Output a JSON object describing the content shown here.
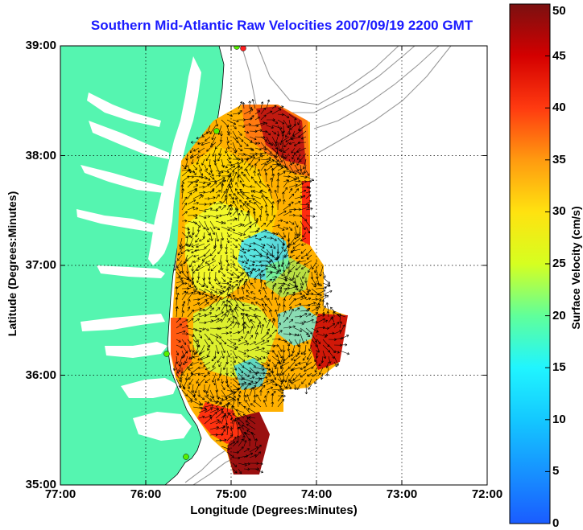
{
  "title": "Southern Mid-Atlantic Raw Velocities 2007/09/19 2200 GMT",
  "xlabel": "Longitude (Degrees:Minutes)",
  "ylabel": "Latitude (Degrees:Minutes)",
  "colorbar": {
    "label": "Surface Velocity (cm/s)",
    "ticks": [
      "0",
      "5",
      "10",
      "15",
      "20",
      "25",
      "30",
      "35",
      "40",
      "45",
      "50"
    ]
  },
  "x_ticks": [
    "77:00",
    "76:00",
    "75:00",
    "74:00",
    "73:00",
    "72:00"
  ],
  "y_ticks": [
    "39:00",
    "38:00",
    "37:00",
    "36:00",
    "35:00"
  ],
  "colors": {
    "land": "#55f5b0",
    "title": "#1a1aff",
    "bathymetry": "#999999"
  },
  "map": {
    "lon_range": [
      -77,
      -72
    ],
    "lat_range": [
      35,
      39
    ],
    "velocity_range_cm_s": [
      0,
      50
    ]
  }
}
